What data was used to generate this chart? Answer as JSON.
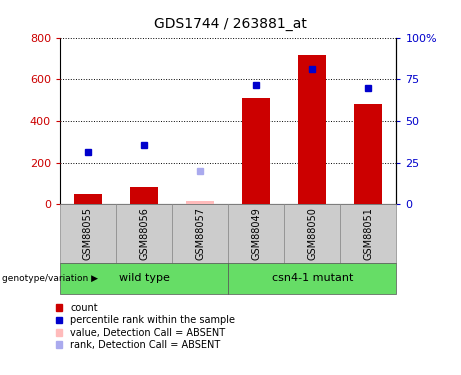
{
  "title": "GDS1744 / 263881_at",
  "categories": [
    "GSM88055",
    "GSM88056",
    "GSM88057",
    "GSM88049",
    "GSM88050",
    "GSM88051"
  ],
  "bar_values": [
    50,
    85,
    15,
    510,
    715,
    480
  ],
  "is_absent": [
    false,
    false,
    true,
    false,
    false,
    false
  ],
  "rank_values_left_scale": [
    250,
    285,
    160,
    570,
    648,
    558
  ],
  "rank_is_absent": [
    false,
    false,
    true,
    false,
    false,
    false
  ],
  "ylim_left": [
    0,
    800
  ],
  "ylim_right": [
    0,
    100
  ],
  "yticks_left": [
    0,
    200,
    400,
    600,
    800
  ],
  "yticks_right": [
    0,
    25,
    50,
    75,
    100
  ],
  "bar_color_present": "#cc0000",
  "bar_color_absent": "#ffbbbb",
  "rank_color_present": "#0000cc",
  "rank_color_absent": "#aaaaee",
  "group1_label": "wild type",
  "group1_count": 3,
  "group2_label": "csn4-1 mutant",
  "group2_count": 3,
  "group_bg_color": "#66dd66",
  "col_bg_color": "#cccccc",
  "genotype_label": "genotype/variation",
  "legend_labels": [
    "count",
    "percentile rank within the sample",
    "value, Detection Call = ABSENT",
    "rank, Detection Call = ABSENT"
  ],
  "legend_colors": [
    "#cc0000",
    "#0000cc",
    "#ffbbbb",
    "#aaaaee"
  ]
}
